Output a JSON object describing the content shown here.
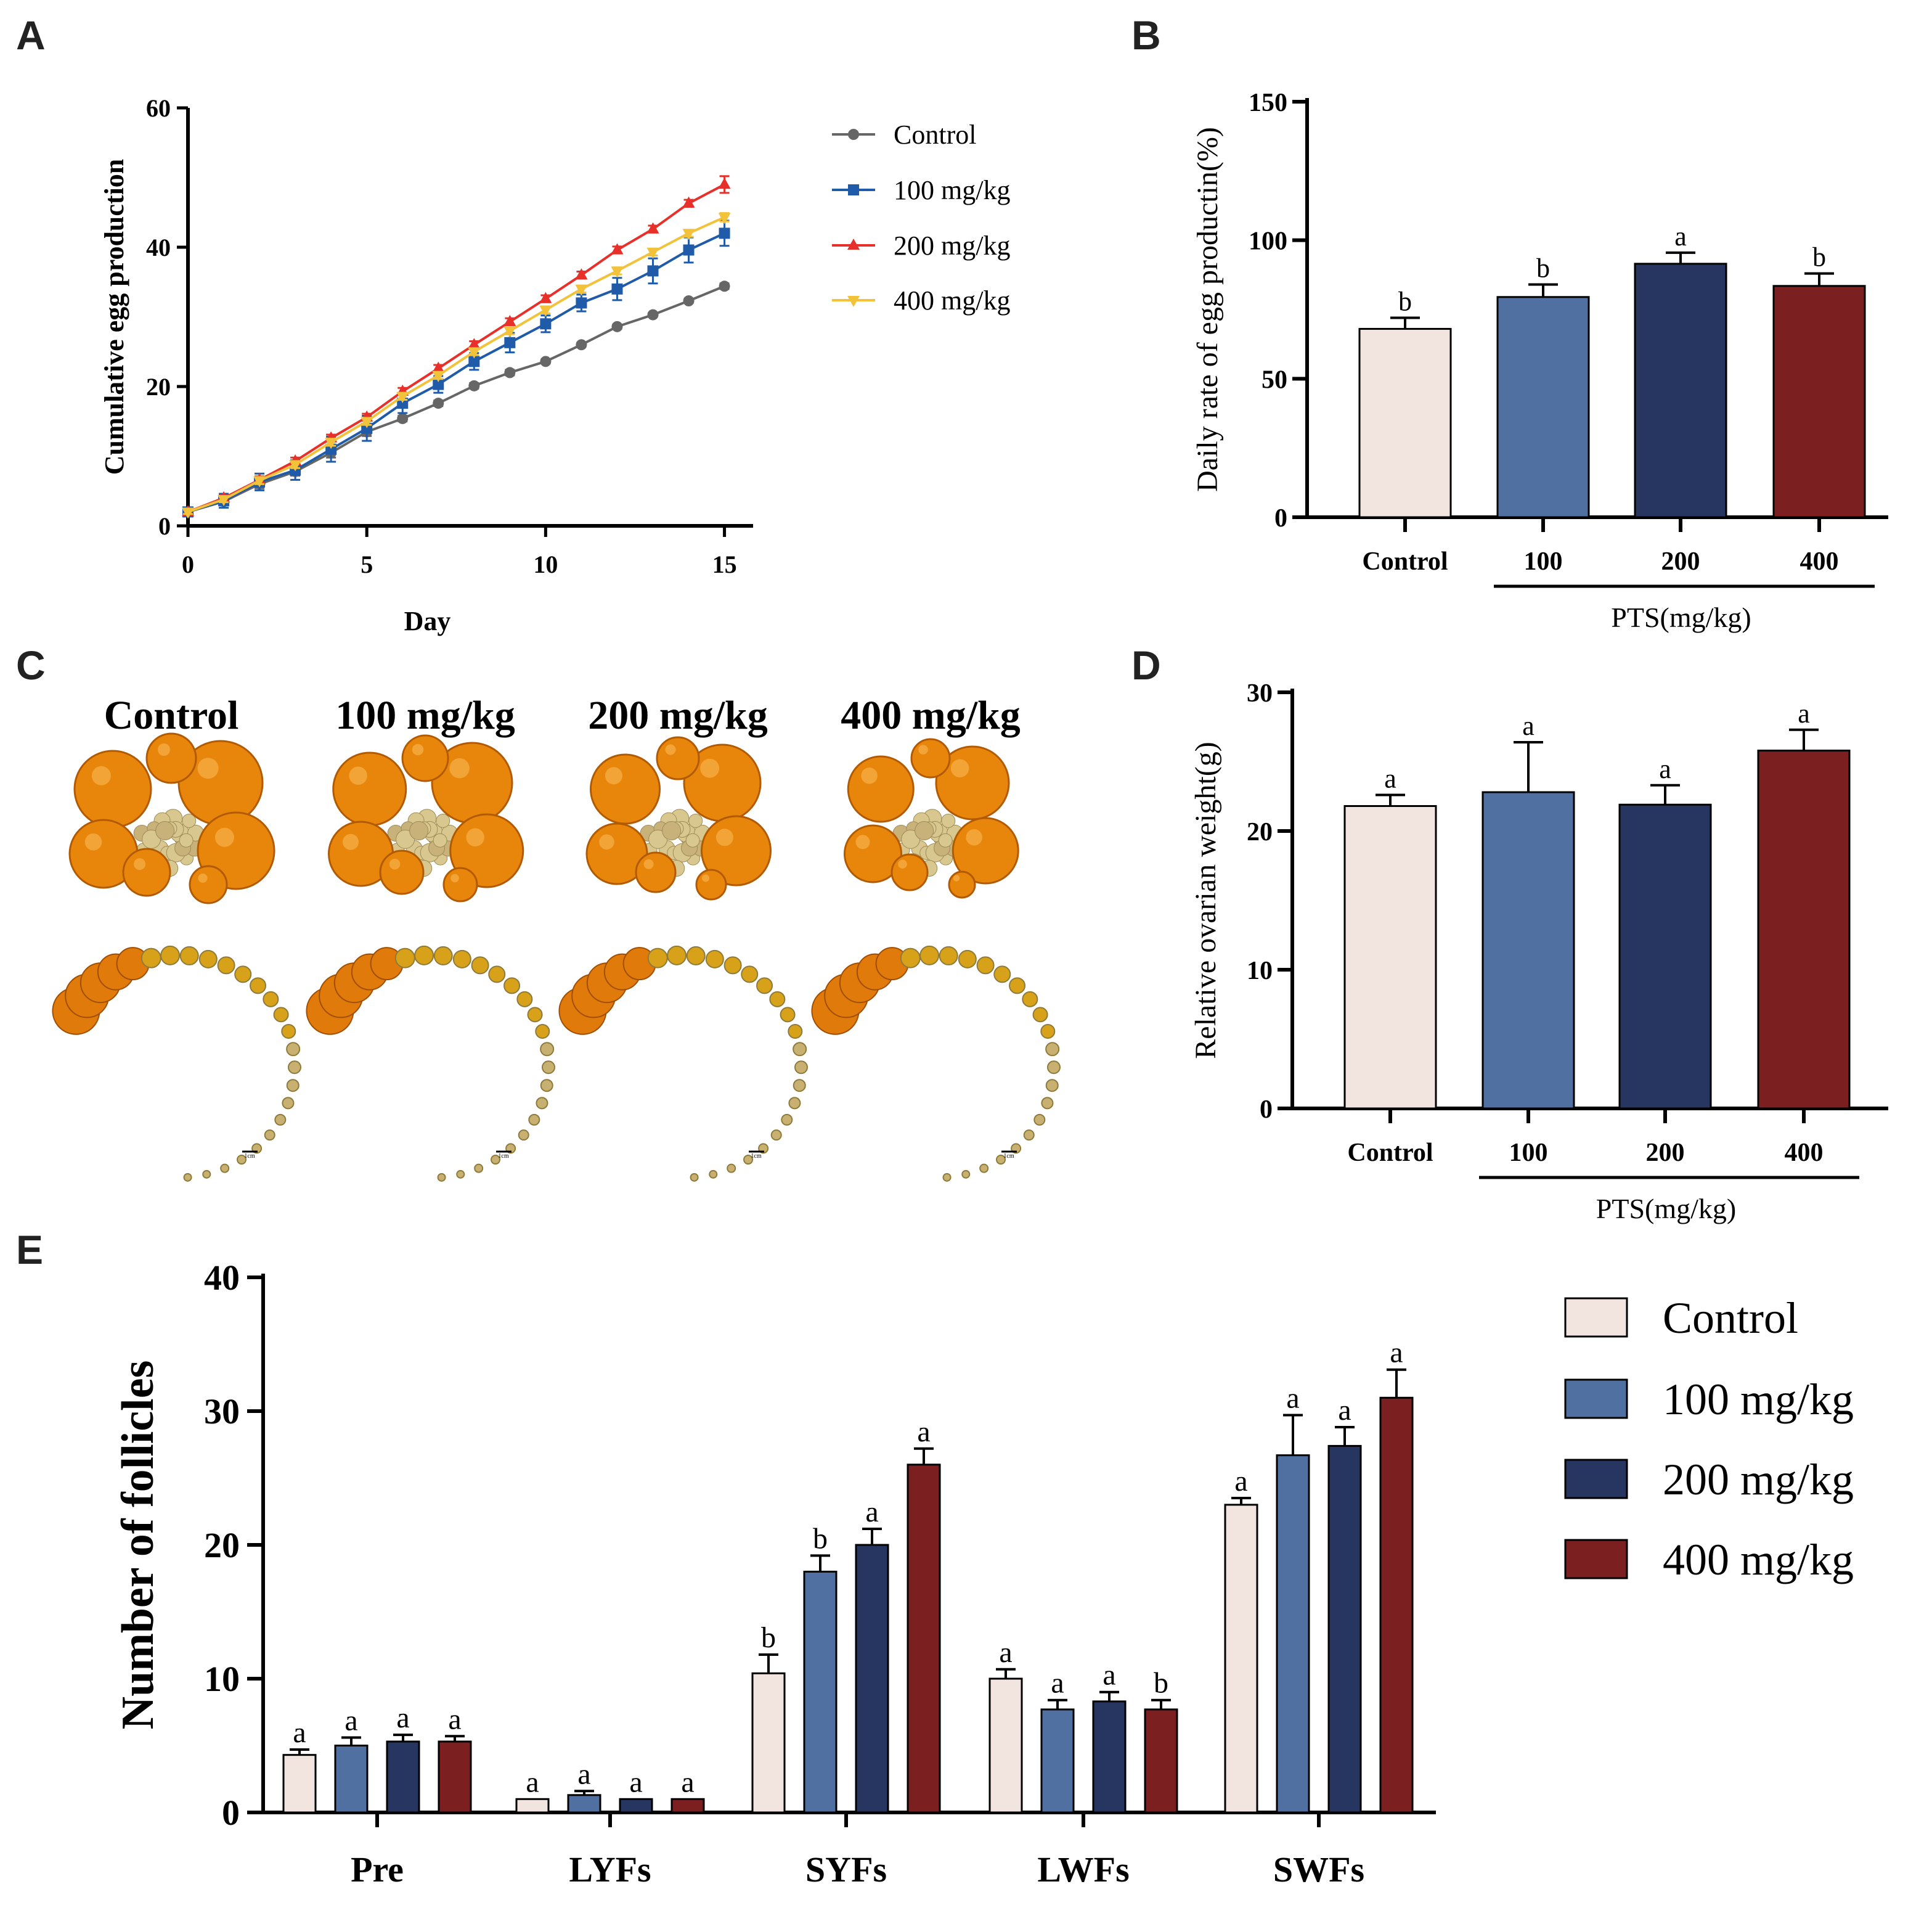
{
  "colors": {
    "control": "#F2E5E0",
    "mg100": "#4F70A0",
    "mg200": "#273660",
    "mg400": "#7C1F21",
    "line_control": "#666666",
    "line_100": "#1F5BA8",
    "line_200": "#E8302A",
    "line_400": "#F2C23A"
  },
  "panels": {
    "a": "A",
    "b": "B",
    "c": "C",
    "d": "D",
    "e": "E"
  },
  "chart_data": [
    {
      "id": "A",
      "type": "line",
      "title": "",
      "xlabel": "Day",
      "ylabel": "Cumulative egg production",
      "xlim": [
        0,
        15.8
      ],
      "ylim": [
        0,
        60
      ],
      "xticks": [
        0,
        5,
        10,
        15
      ],
      "yticks": [
        0,
        20,
        40,
        60
      ],
      "x": [
        0,
        1,
        2,
        3,
        4,
        5,
        6,
        7,
        8,
        9,
        10,
        11,
        12,
        13,
        14,
        15
      ],
      "legend": "right",
      "series": [
        {
          "name": "Control",
          "marker": "circle",
          "color": "#666666",
          "values": [
            2,
            3.5,
            6,
            7.8,
            10.5,
            13.5,
            15.4,
            17.6,
            20.1,
            22,
            23.6,
            26,
            28.6,
            30.3,
            32.3,
            34.4
          ],
          "err": [
            0.3,
            0.5,
            0.6,
            0.6,
            0.7,
            0.6,
            0.4,
            0.4,
            0.4,
            0.4,
            0.3,
            0.3,
            0.3,
            0.3,
            0.3,
            0.4
          ]
        },
        {
          "name": "100 mg/kg",
          "marker": "square",
          "color": "#1F5BA8",
          "values": [
            2,
            3.6,
            6.3,
            8,
            11,
            14,
            17.6,
            20.3,
            23.6,
            26.3,
            29,
            32,
            34,
            36.6,
            39.6,
            42
          ],
          "err": [
            0.4,
            1,
            1.2,
            1.4,
            1.8,
            1.8,
            1.4,
            1.2,
            1.2,
            1.4,
            1.2,
            1.2,
            1.6,
            1.8,
            1.8,
            1.8
          ]
        },
        {
          "name": "200 mg/kg",
          "marker": "triangle-up",
          "color": "#E8302A",
          "values": [
            2,
            4,
            6.6,
            9.3,
            12.6,
            15.6,
            19.3,
            22.6,
            26,
            29.3,
            32.6,
            36,
            39.6,
            42.6,
            46.3,
            49
          ],
          "err": [
            0.3,
            0.4,
            0.5,
            0.5,
            0.5,
            0.5,
            0.5,
            0.5,
            0.5,
            0.5,
            0.5,
            0.5,
            0.5,
            0.5,
            0.5,
            1.2
          ]
        },
        {
          "name": "400 mg/kg",
          "marker": "triangle-down",
          "color": "#F2C23A",
          "values": [
            2,
            3.8,
            6.5,
            8.8,
            12,
            15,
            18.6,
            21.6,
            25,
            28,
            31,
            34,
            36.6,
            39.3,
            42,
            44.3
          ],
          "err": [
            0.3,
            0.4,
            0.5,
            0.5,
            0.5,
            0.5,
            0.5,
            0.5,
            0.5,
            0.5,
            0.5,
            0.5,
            0.5,
            0.5,
            0.5,
            0.6
          ]
        }
      ]
    },
    {
      "id": "B",
      "type": "bar",
      "ylabel": "Daily rate of egg productin(%)",
      "xlabel": "PTS(mg/kg)",
      "ylim": [
        0,
        150
      ],
      "yticks": [
        0,
        50,
        100,
        150
      ],
      "categories": [
        "Control",
        "100",
        "200",
        "400"
      ],
      "values": [
        68,
        79.5,
        91.5,
        83.5
      ],
      "err": [
        4,
        4.5,
        4,
        4.5
      ],
      "letters": [
        "b",
        "b",
        "a",
        "b"
      ]
    },
    {
      "id": "D",
      "type": "bar",
      "ylabel": "Relative ovarian weight(g)",
      "xlabel": "PTS(mg/kg)",
      "ylim": [
        0,
        30
      ],
      "yticks": [
        0,
        10,
        20,
        30
      ],
      "categories": [
        "Control",
        "100",
        "200",
        "400"
      ],
      "values": [
        21.8,
        22.8,
        21.9,
        25.8
      ],
      "err": [
        0.8,
        3.6,
        1.4,
        1.5
      ],
      "letters": [
        "a",
        "a",
        "a",
        "a"
      ]
    },
    {
      "id": "E",
      "type": "bar",
      "ylabel": "Number of follicles",
      "ylim": [
        0,
        40
      ],
      "yticks": [
        0,
        10,
        20,
        30,
        40
      ],
      "categories": [
        "Pre",
        "LYFs",
        "SYFs",
        "LWFs",
        "SWFs"
      ],
      "legend": "right",
      "series": [
        {
          "name": "Control",
          "values": [
            4.3,
            1,
            10.4,
            10,
            23
          ],
          "err": [
            0.4,
            0,
            1.4,
            0.7,
            0.5
          ],
          "letters": [
            "a",
            "a",
            "b",
            "a",
            "a"
          ]
        },
        {
          "name": "100 mg/kg",
          "values": [
            5,
            1.3,
            18,
            7.7,
            26.7
          ],
          "err": [
            0.6,
            0.3,
            1.2,
            0.7,
            3
          ],
          "letters": [
            "a",
            "a",
            "b",
            "a",
            "a"
          ]
        },
        {
          "name": "200 mg/kg",
          "values": [
            5.3,
            1,
            20,
            8.3,
            27.4
          ],
          "err": [
            0.5,
            0,
            1.2,
            0.7,
            1.4
          ],
          "letters": [
            "a",
            "a",
            "a",
            "a",
            "a"
          ]
        },
        {
          "name": "400 mg/kg",
          "values": [
            5.3,
            1,
            26,
            7.7,
            31
          ],
          "err": [
            0.4,
            0,
            1.2,
            0.7,
            2.1
          ],
          "letters": [
            "a",
            "a",
            "a",
            "b",
            "a"
          ]
        }
      ]
    }
  ],
  "photos": {
    "labels": [
      "Control",
      "100 mg/kg",
      "200 mg/kg",
      "400 mg/kg"
    ],
    "scale_bar": "1cm"
  }
}
